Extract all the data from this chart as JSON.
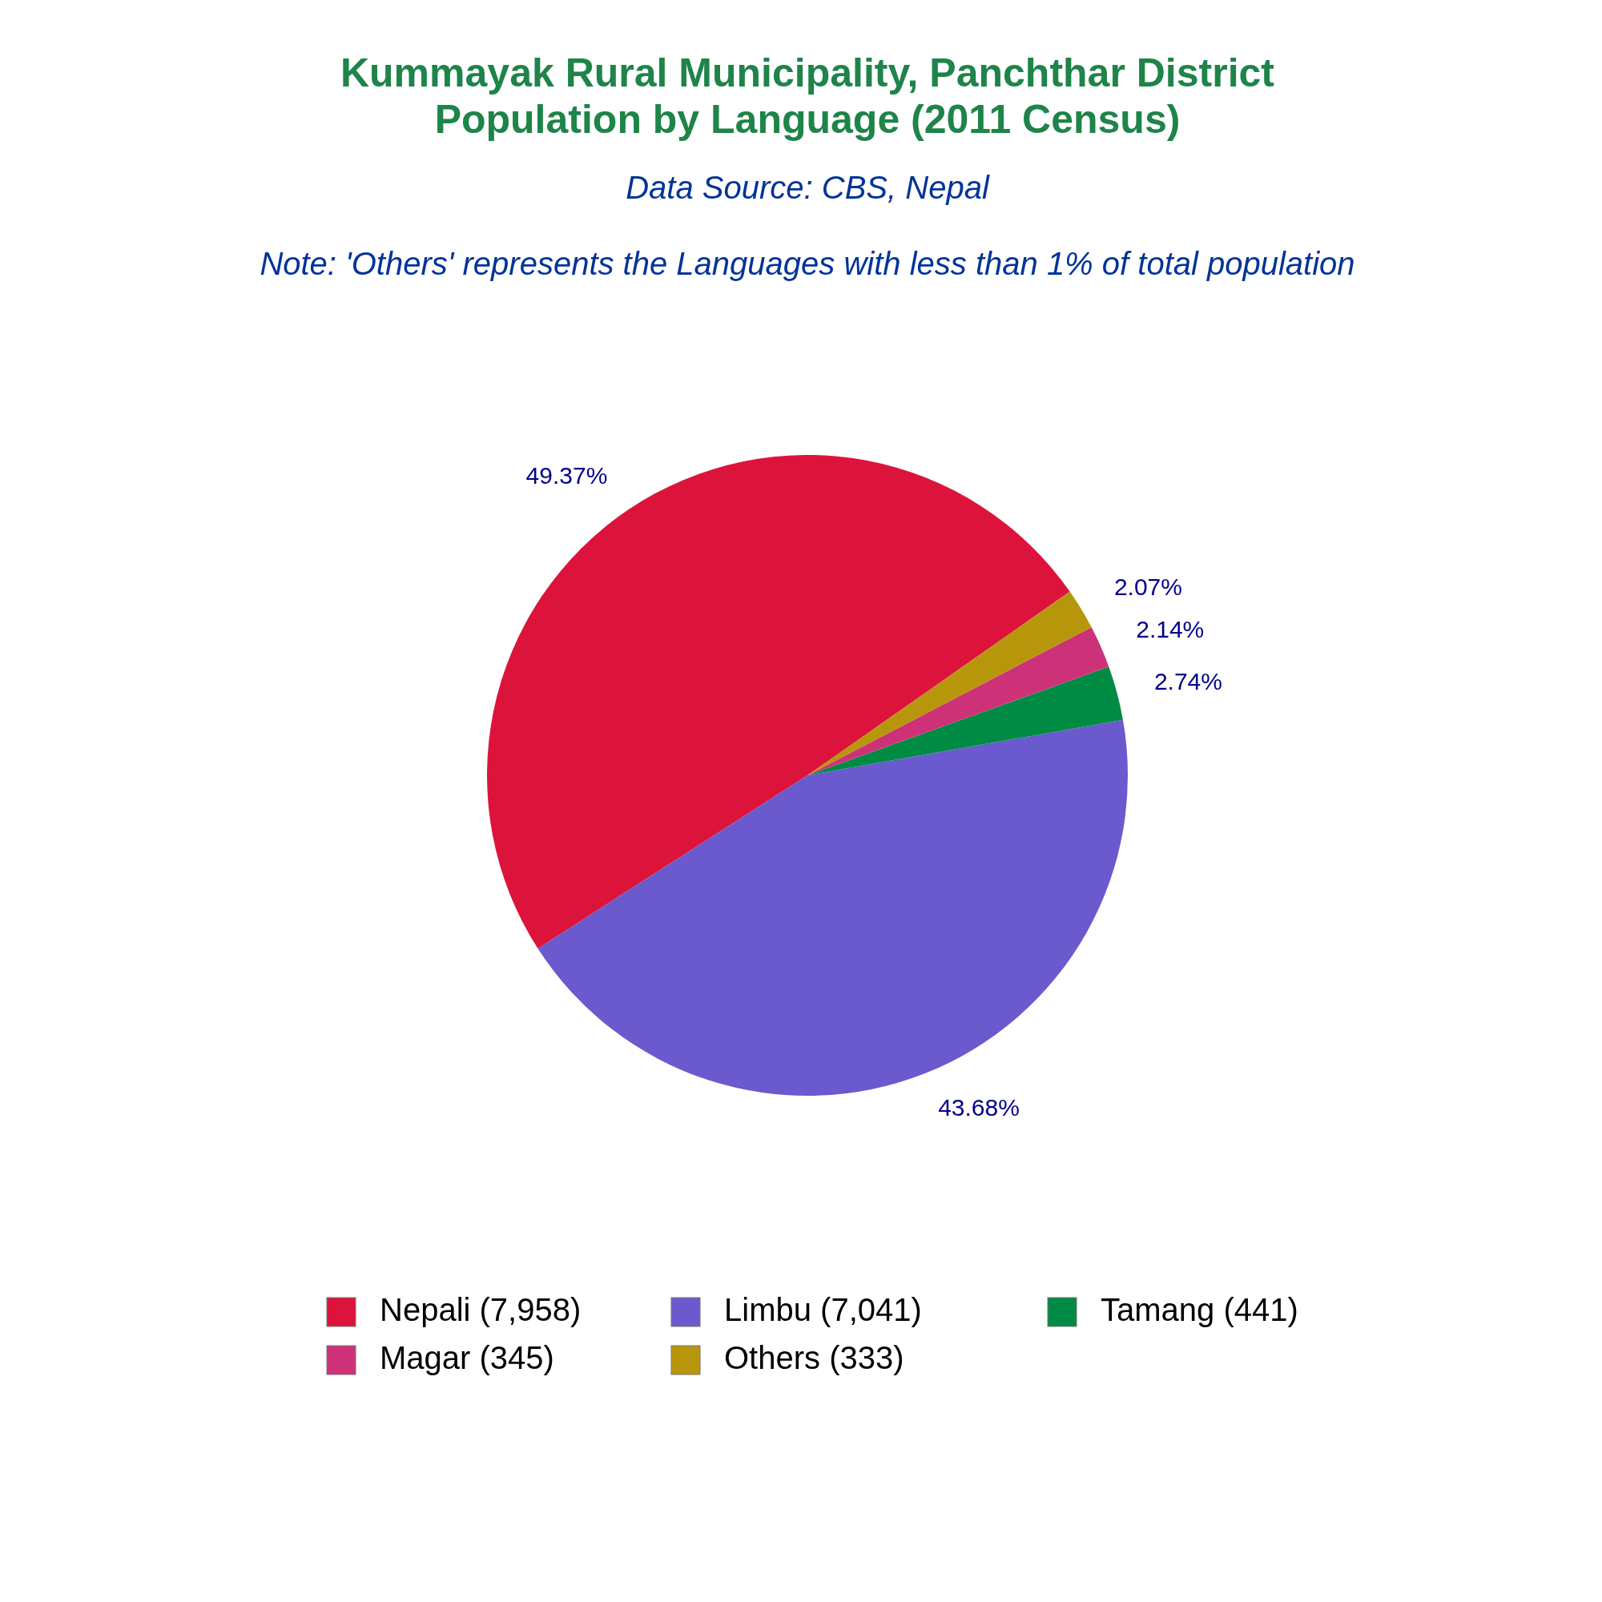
{
  "chart_data": {
    "type": "pie",
    "title": "Kummayak Rural Municipality, Panchthar District\nPopulation by Language (2011 Census)",
    "subtitle": "Data Source: CBS, Nepal",
    "annotations": [
      "Note: 'Others' represents the Languages with less than 1% of total population"
    ],
    "categories": [
      "Nepali (7,958)",
      "Limbu (7,041)",
      "Tamang (441)",
      "Magar (345)",
      "Others (333)"
    ],
    "values": [
      49.37,
      43.68,
      2.74,
      2.14,
      2.07
    ],
    "colors": [
      "#dc143c",
      "#6a5acd",
      "#008b45",
      "#cd3278",
      "#b8960c"
    ],
    "value_labels": [
      "49.37%",
      "43.68%",
      "2.74%",
      "2.14%",
      "2.07%"
    ],
    "legend": "bottom"
  }
}
